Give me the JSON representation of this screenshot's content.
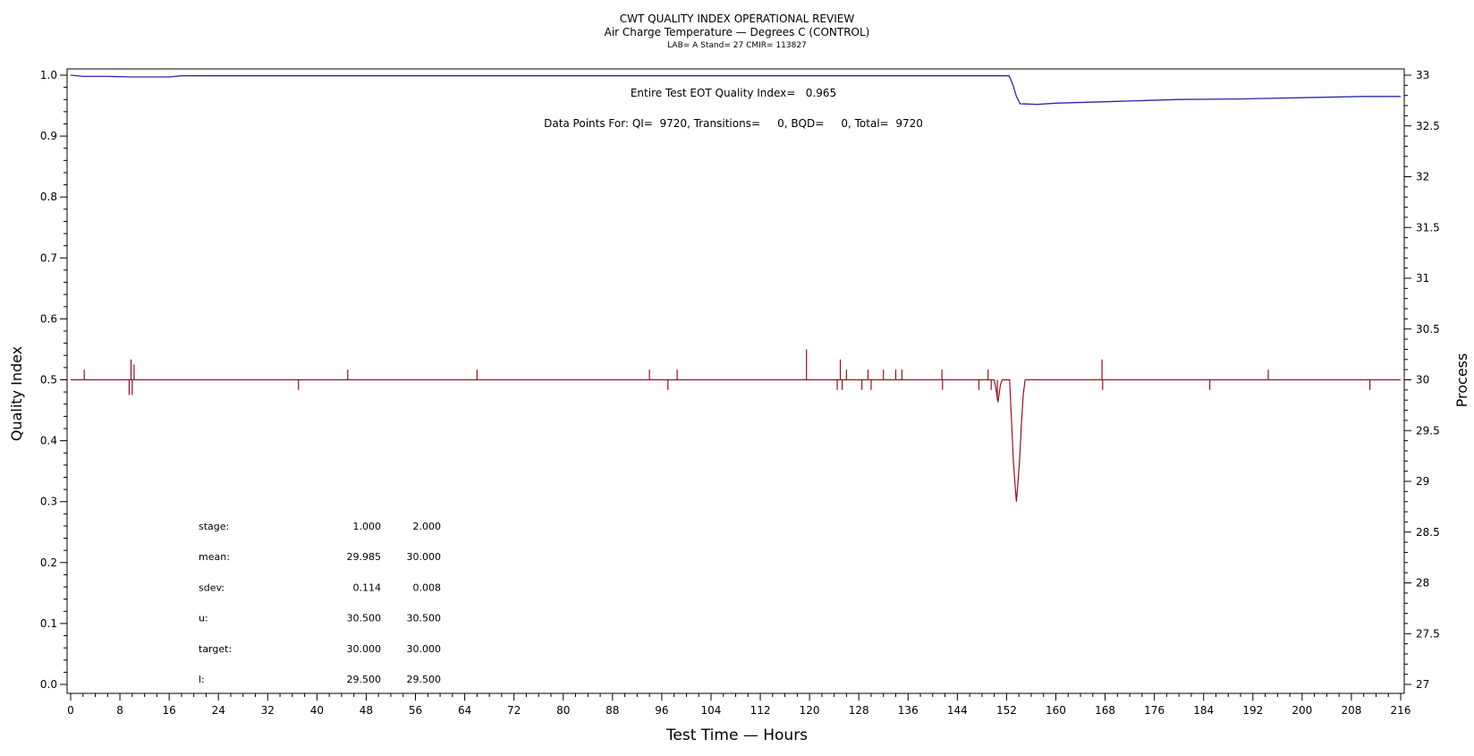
{
  "chart_data": {
    "type": "line",
    "title": "CWT QUALITY INDEX OPERATIONAL REVIEW",
    "subtitle": "Air Charge Temperature — Degrees C (CONTROL)",
    "subtitle2": "LAB= A Stand= 27 CMIR= 113827",
    "xlabel": "Test Time — Hours",
    "ylabel": "Quality Index",
    "y2label": "Process",
    "xlim": [
      0,
      216
    ],
    "ylim": [
      0,
      1
    ],
    "y2lim": [
      27,
      33
    ],
    "xticks": [
      0,
      8,
      16,
      24,
      32,
      40,
      48,
      56,
      64,
      72,
      80,
      88,
      96,
      104,
      112,
      120,
      128,
      136,
      144,
      152,
      160,
      168,
      176,
      184,
      192,
      200,
      208,
      216
    ],
    "yticks": [
      "0.0",
      "0.1",
      "0.2",
      "0.3",
      "0.4",
      "0.5",
      "0.6",
      "0.7",
      "0.8",
      "0.9",
      "1.0"
    ],
    "y2ticks": [
      "27",
      "27.5",
      "28",
      "28.5",
      "29",
      "29.5",
      "30",
      "30.5",
      "31",
      "31.5",
      "32",
      "32.5",
      "33"
    ],
    "annotation_qi": "Entire Test EOT Quality Index=   0.965",
    "annotation_points": "Data Points For: QI=  9720, Transitions=     0, BQD=     0, Total=  9720",
    "colors": {
      "quality_index": "#2a2aa8",
      "process": "#9b0d20"
    },
    "series": [
      {
        "axis": "left",
        "values": [
          [
            0,
            1.0
          ],
          [
            2,
            0.998
          ],
          [
            6,
            0.998
          ],
          [
            10,
            0.997
          ],
          [
            16,
            0.997
          ],
          [
            18,
            0.999
          ],
          [
            150,
            0.999
          ],
          [
            152.4,
            0.999
          ],
          [
            153,
            0.985
          ],
          [
            153.6,
            0.965
          ],
          [
            154.2,
            0.953
          ],
          [
            157,
            0.952
          ],
          [
            160,
            0.954
          ],
          [
            170,
            0.957
          ],
          [
            180,
            0.96
          ],
          [
            190,
            0.961
          ],
          [
            200,
            0.963
          ],
          [
            210,
            0.965
          ],
          [
            216,
            0.965
          ]
        ]
      },
      {
        "axis": "right",
        "baseline": 30.0,
        "spikes": [
          [
            2.2,
            30.1
          ],
          [
            9.5,
            29.85
          ],
          [
            9.8,
            30.2
          ],
          [
            10.0,
            29.85
          ],
          [
            10.3,
            30.15
          ],
          [
            37.0,
            29.9
          ],
          [
            45.0,
            30.1
          ],
          [
            66.0,
            30.1
          ],
          [
            94.0,
            30.1
          ],
          [
            97.0,
            29.9
          ],
          [
            98.5,
            30.1
          ],
          [
            119.5,
            30.3
          ],
          [
            124.5,
            29.9
          ],
          [
            125.0,
            30.2
          ],
          [
            125.3,
            29.9
          ],
          [
            126.0,
            30.1
          ],
          [
            128.5,
            29.9
          ],
          [
            129.5,
            30.1
          ],
          [
            130.0,
            29.9
          ],
          [
            132.0,
            30.1
          ],
          [
            134.0,
            30.1
          ],
          [
            135.0,
            30.1
          ],
          [
            141.5,
            30.1
          ],
          [
            141.6,
            29.9
          ],
          [
            147.5,
            29.9
          ],
          [
            149.0,
            30.1
          ],
          [
            149.5,
            29.9
          ],
          [
            150.5,
            29.8
          ],
          [
            167.5,
            30.2
          ],
          [
            167.6,
            29.9
          ],
          [
            185.0,
            29.9
          ],
          [
            194.5,
            30.1
          ],
          [
            211.0,
            29.9
          ]
        ],
        "dip": [
          [
            150.0,
            30.0
          ],
          [
            150.3,
            29.9
          ],
          [
            150.6,
            29.78
          ],
          [
            151.0,
            29.95
          ],
          [
            151.3,
            30.0
          ],
          [
            152.5,
            30.0
          ],
          [
            152.8,
            29.6
          ],
          [
            153.1,
            29.2
          ],
          [
            153.4,
            28.95
          ],
          [
            153.6,
            28.8
          ],
          [
            153.8,
            28.95
          ],
          [
            154.1,
            29.2
          ],
          [
            154.4,
            29.55
          ],
          [
            154.7,
            29.85
          ],
          [
            155.0,
            30.0
          ]
        ]
      }
    ]
  },
  "stats_table": {
    "rows": [
      {
        "label": "stage:",
        "v1": "1.000",
        "v2": "2.000"
      },
      {
        "label": "mean:",
        "v1": "29.985",
        "v2": "30.000"
      },
      {
        "label": "sdev:",
        "v1": "0.114",
        "v2": "0.008"
      },
      {
        "label": "u:",
        "v1": "30.500",
        "v2": "30.500"
      },
      {
        "label": "target:",
        "v1": "30.000",
        "v2": "30.000"
      },
      {
        "label": "l:",
        "v1": "29.500",
        "v2": "29.500"
      }
    ]
  }
}
